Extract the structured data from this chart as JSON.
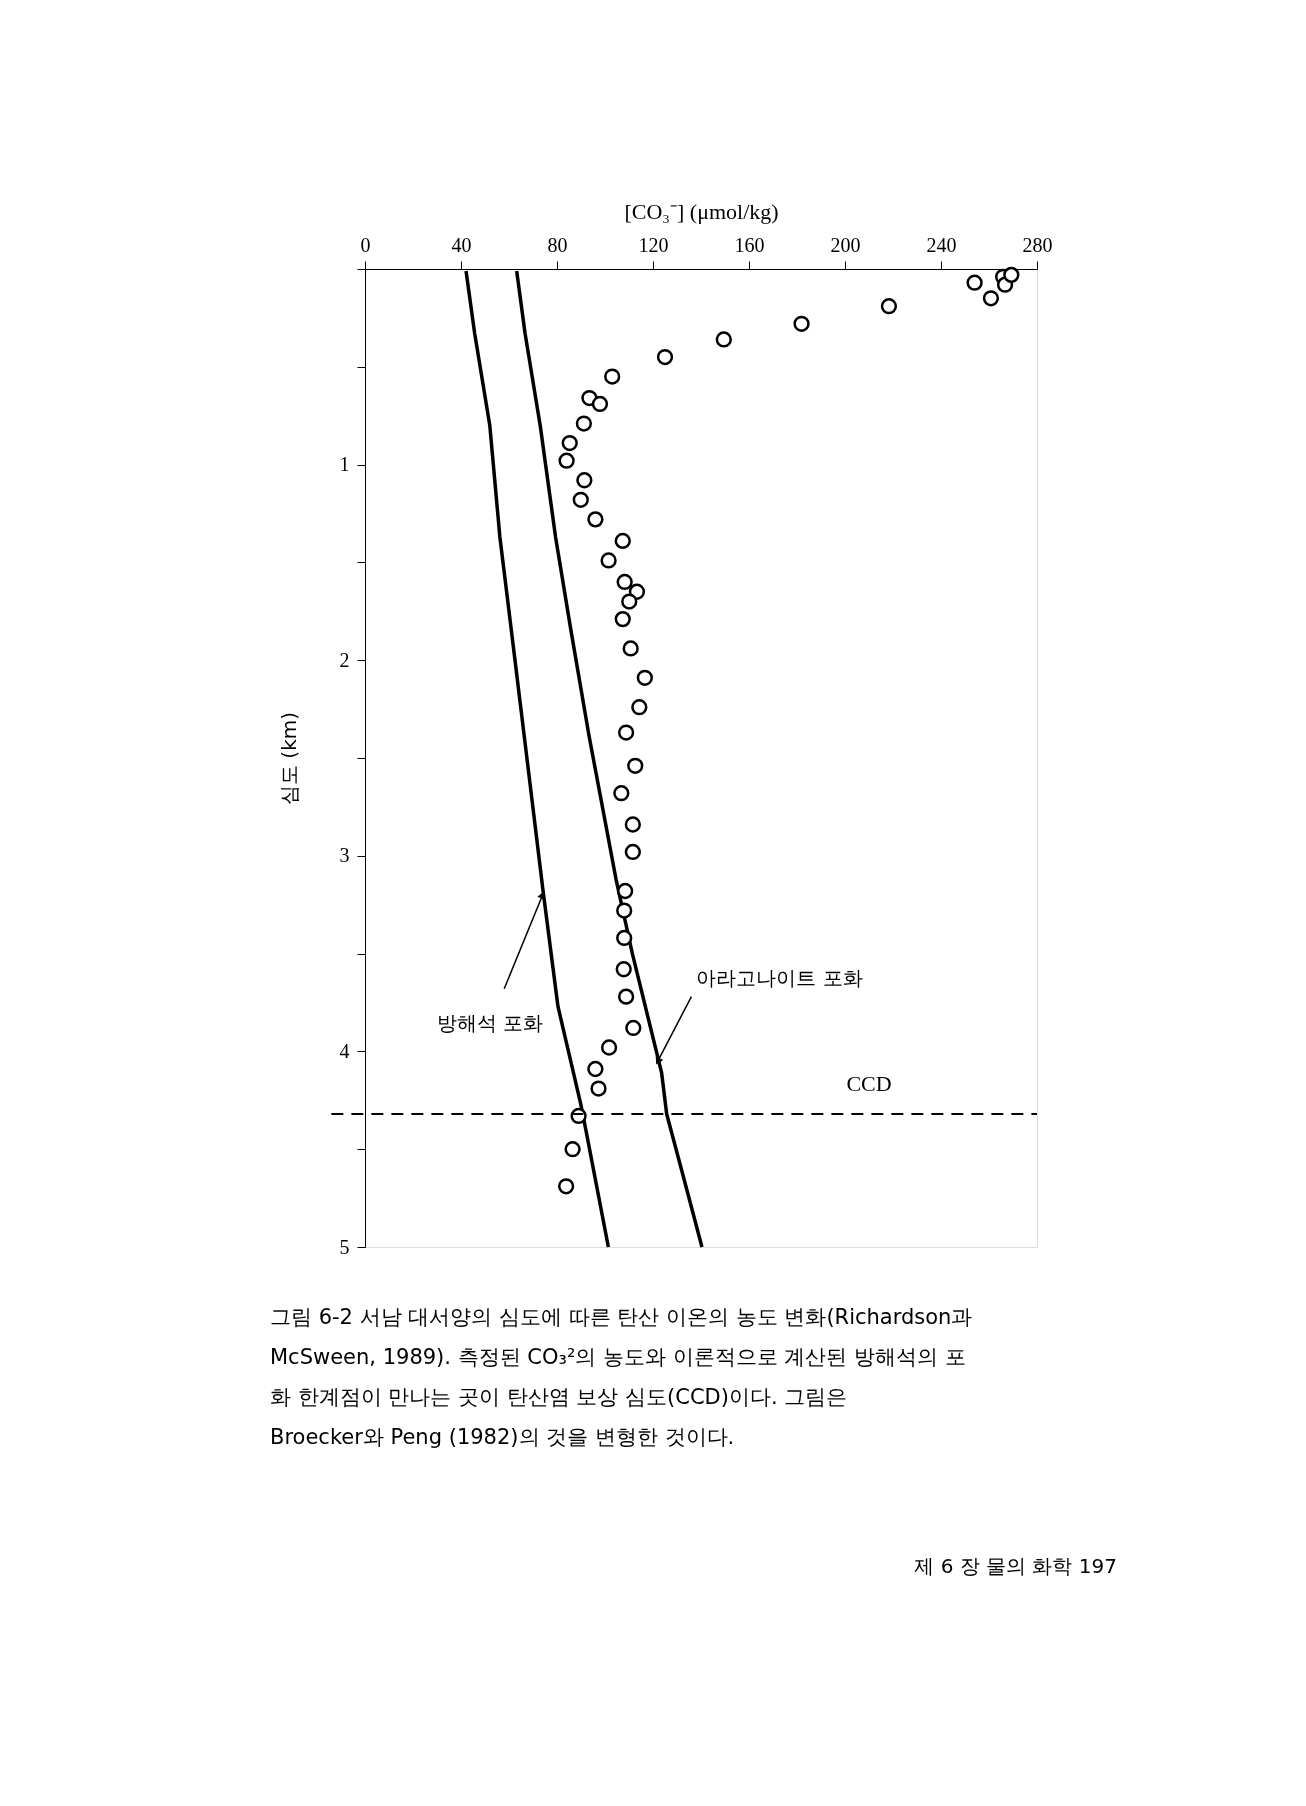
{
  "chart_data": {
    "type": "scatter",
    "xlabel": "[CO₃⁻] (μmol/kg)",
    "ylabel": "심도 (km)",
    "xlim": [
      0,
      280
    ],
    "xticks": [
      0,
      40,
      80,
      120,
      160,
      200,
      240,
      280
    ],
    "ylim": [
      5,
      0
    ],
    "yticks": [
      {
        "value": 0,
        "label": null
      },
      {
        "value": 0.5,
        "label": null
      },
      1,
      {
        "value": 1.5,
        "label": null
      },
      2,
      {
        "value": 2.5,
        "label": null
      },
      3,
      {
        "value": 3.5,
        "label": null
      },
      4,
      {
        "value": 4.5,
        "label": null
      },
      5
    ],
    "grid": false,
    "series": [
      {
        "marker": "circle",
        "color": "#000000",
        "x": [
          254,
          265.9,
          266.7,
          269.3,
          260.8,
          218.3,
          181.9,
          149.5,
          125,
          103,
          93.5,
          97.9,
          91.2,
          85.3,
          84,
          91.4,
          89.9,
          96,
          107.4,
          101.5,
          108.2,
          113.3,
          110.1,
          107.4,
          110.7,
          116.6,
          114.3,
          108.8,
          112.6,
          106.8,
          111.6,
          111.6,
          108.4,
          108,
          108,
          107.8,
          108.8,
          111.8,
          101.7,
          96,
          97.3,
          89,
          86.5,
          83.8
        ],
        "values": [
          0.07,
          0.04,
          0.08,
          0.03,
          0.15,
          0.19,
          0.28,
          0.36,
          0.45,
          0.55,
          0.66,
          0.69,
          0.79,
          0.89,
          0.98,
          1.08,
          1.18,
          1.28,
          1.39,
          1.49,
          1.6,
          1.65,
          1.7,
          1.79,
          1.94,
          2.09,
          2.24,
          2.37,
          2.54,
          2.68,
          2.84,
          2.98,
          3.18,
          3.28,
          3.42,
          3.58,
          3.72,
          3.88,
          3.98,
          4.09,
          4.19,
          4.33,
          4.5,
          4.69
        ]
      },
      {
        "type": "line",
        "line_style": "solid",
        "color": "#000000",
        "x": [
          42.1,
          45.7,
          52,
          56.2,
          62.5,
          74.1,
          80.4,
          89.9,
          92,
          101.4
        ],
        "values": [
          0.01,
          0.33,
          0.8,
          1.37,
          2.0,
          3.17,
          3.77,
          4.27,
          4.4,
          5.0
        ]
      },
      {
        "type": "line",
        "line_style": "solid",
        "color": "#000000",
        "x": [
          63.2,
          66.7,
          73,
          79.4,
          85.7,
          93.4,
          104.6,
          111.4,
          123.6,
          125.7,
          132,
          140.4
        ],
        "values": [
          0.01,
          0.33,
          0.8,
          1.37,
          1.84,
          2.39,
          3.12,
          3.5,
          4.11,
          4.32,
          4.61,
          5.0
        ]
      }
    ],
    "ref_lines": [
      {
        "axis": "y",
        "value": 4.32,
        "label": "CCD",
        "color": "#000000",
        "line_style": "dashed"
      }
    ],
    "annotations": [
      {
        "text": "방해석 포화",
        "x": 74,
        "y": 3.2
      },
      {
        "text": "아라고나이트 포화",
        "x": 122,
        "y": 4.05
      },
      "그림 6-2  서남  대서양의  심도에  따른  탄산 이온의  농도 변화(Richardson과\nMcSween, 1989). 측정된 CO₃²의 농도와 이론적으로 계산된 방해석의 포\n화 한계점이  만나는  곳이  탄산염  보상  심도(CCD)이다.  그림은\nBroecker와  Peng  (1982)의 것을 변형한 것이다.",
      "제 6 장  물의 화학  197"
    ]
  }
}
